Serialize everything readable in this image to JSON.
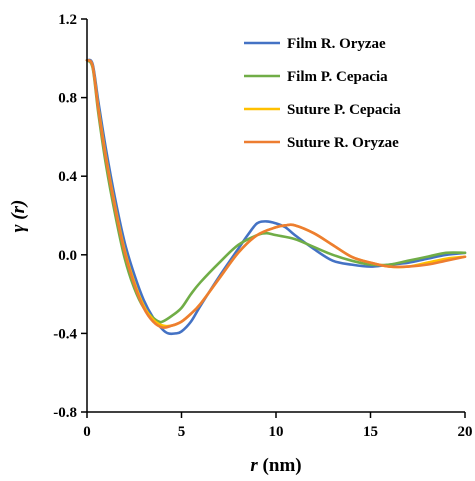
{
  "chart_data": {
    "type": "line",
    "xlabel_var": "r",
    "xlabel_unit": " (nm)",
    "ylabel_var": "γ",
    "ylabel_arg": " (r)",
    "xlim": [
      0,
      20
    ],
    "ylim": [
      -0.8,
      1.2
    ],
    "xticks": [
      0,
      5,
      10,
      15,
      20
    ],
    "yticks": [
      -0.8,
      -0.4,
      0.0,
      0.4,
      0.8,
      1.2
    ],
    "ytick_labels": [
      "-0.8",
      "-0.4",
      "0.0",
      "0.4",
      "0.8",
      "1.2"
    ],
    "legend_position": "top-right",
    "grid": false,
    "series": [
      {
        "name": "Film R. Oryzae",
        "color": "#4472C4",
        "x": [
          0,
          0.3,
          0.6,
          1,
          1.5,
          2,
          2.5,
          3,
          3.5,
          4,
          4.3,
          4.7,
          5,
          5.5,
          6,
          7,
          8,
          8.5,
          9,
          9.5,
          10,
          10.5,
          11,
          12,
          13,
          14,
          15,
          16,
          17,
          18,
          19,
          20
        ],
        "y": [
          0.99,
          0.97,
          0.78,
          0.54,
          0.28,
          0.06,
          -0.1,
          -0.23,
          -0.32,
          -0.38,
          -0.4,
          -0.4,
          -0.39,
          -0.34,
          -0.26,
          -0.11,
          0.03,
          0.1,
          0.16,
          0.17,
          0.16,
          0.14,
          0.1,
          0.03,
          -0.03,
          -0.05,
          -0.06,
          -0.05,
          -0.04,
          -0.02,
          0.0,
          0.01
        ]
      },
      {
        "name": "Film P. Cepacia",
        "color": "#70AD47",
        "x": [
          0,
          0.3,
          0.6,
          1,
          1.5,
          2,
          2.5,
          3,
          3.5,
          3.8,
          4,
          4.5,
          5,
          5.5,
          6,
          7,
          8,
          9,
          9.5,
          10,
          11,
          12,
          13,
          14,
          15,
          16,
          17,
          18,
          19,
          20
        ],
        "y": [
          0.99,
          0.95,
          0.72,
          0.46,
          0.2,
          -0.02,
          -0.17,
          -0.27,
          -0.32,
          -0.34,
          -0.34,
          -0.31,
          -0.27,
          -0.2,
          -0.14,
          -0.04,
          0.05,
          0.1,
          0.11,
          0.1,
          0.08,
          0.04,
          0.0,
          -0.03,
          -0.05,
          -0.05,
          -0.03,
          -0.01,
          0.01,
          0.01
        ]
      },
      {
        "name": "Suture P. Cepacia",
        "color": "#FFC000",
        "x": [
          0,
          0.3,
          0.6,
          1,
          1.5,
          2,
          2.5,
          3,
          3.5,
          4,
          4.5,
          5,
          5.5,
          6,
          7,
          8,
          9,
          10,
          10.5,
          11,
          12,
          13,
          14,
          15,
          16,
          17,
          18,
          19,
          20
        ],
        "y": [
          0.99,
          0.96,
          0.75,
          0.5,
          0.24,
          0.02,
          -0.14,
          -0.26,
          -0.33,
          -0.36,
          -0.36,
          -0.34,
          -0.3,
          -0.25,
          -0.12,
          0.01,
          0.1,
          0.14,
          0.15,
          0.15,
          0.11,
          0.05,
          -0.01,
          -0.04,
          -0.06,
          -0.06,
          -0.04,
          -0.02,
          -0.01
        ]
      },
      {
        "name": "Suture R. Oryzae",
        "color": "#ED7D31",
        "x": [
          0,
          0.3,
          0.6,
          1,
          1.5,
          2,
          2.5,
          3,
          3.5,
          4,
          4.5,
          5,
          5.5,
          6,
          7,
          8,
          9,
          10,
          10.5,
          11,
          12,
          13,
          14,
          15,
          16,
          17,
          18,
          19,
          20
        ],
        "y": [
          0.99,
          0.96,
          0.74,
          0.49,
          0.23,
          0.01,
          -0.15,
          -0.27,
          -0.34,
          -0.37,
          -0.36,
          -0.34,
          -0.3,
          -0.25,
          -0.12,
          0.01,
          0.1,
          0.14,
          0.15,
          0.15,
          0.11,
          0.05,
          -0.01,
          -0.04,
          -0.06,
          -0.06,
          -0.05,
          -0.03,
          -0.01
        ]
      }
    ]
  }
}
